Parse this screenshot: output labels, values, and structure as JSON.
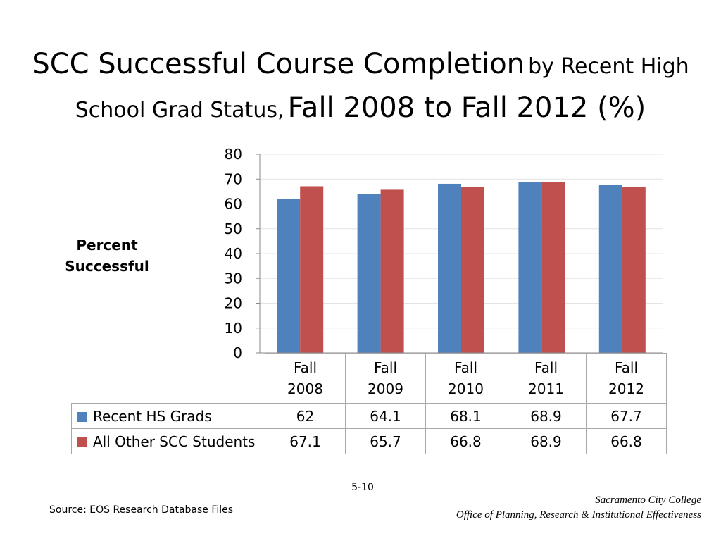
{
  "title": {
    "part1": "SCC Successful Course Completion",
    "part2": "by Recent High School Grad Status,",
    "part3": "Fall 2008 to Fall 2012 (%)"
  },
  "chart_data": {
    "type": "bar",
    "categories": [
      "Fall 2008",
      "Fall 2009",
      "Fall 2010",
      "Fall 2011",
      "Fall 2012"
    ],
    "category_lines": [
      [
        "Fall",
        "2008"
      ],
      [
        "Fall",
        "2009"
      ],
      [
        "Fall",
        "2010"
      ],
      [
        "Fall",
        "2011"
      ],
      [
        "Fall",
        "2012"
      ]
    ],
    "series": [
      {
        "name": "Recent HS Grads",
        "values": [
          62,
          64.1,
          68.1,
          68.9,
          67.7
        ],
        "color": "#4f81bd"
      },
      {
        "name": "All Other SCC Students",
        "values": [
          67.1,
          65.7,
          66.8,
          68.9,
          66.8
        ],
        "color": "#c0504d"
      }
    ],
    "ylabel_lines": [
      "Percent",
      "Successful"
    ],
    "ylim": [
      0,
      80
    ],
    "yticks": [
      0,
      10,
      20,
      30,
      40,
      50,
      60,
      70,
      80
    ],
    "grid": true,
    "legend": "data-table"
  },
  "footer": {
    "page": "5-10",
    "source": "Source: EOS Research Database Files",
    "org_line1": "Sacramento City College",
    "org_line2": "Office of Planning, Research & Institutional Effectiveness"
  }
}
